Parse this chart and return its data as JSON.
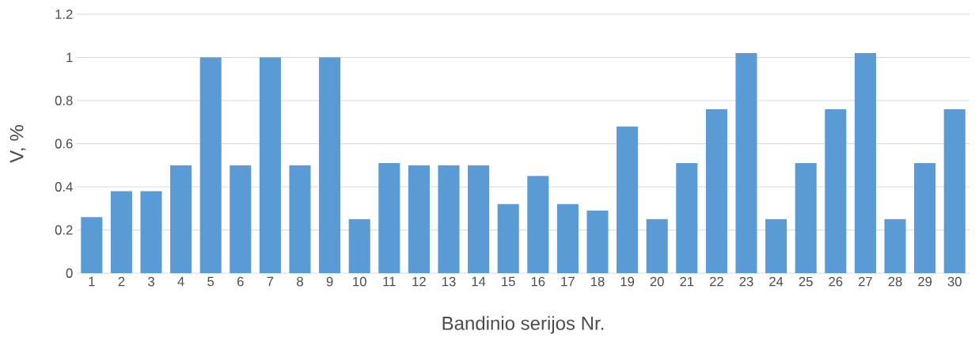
{
  "chart_data": {
    "type": "bar",
    "xlabel": "Bandinio serijos Nr.",
    "ylabel": "V, %",
    "categories": [
      "1",
      "2",
      "3",
      "4",
      "5",
      "6",
      "7",
      "8",
      "9",
      "10",
      "11",
      "12",
      "13",
      "14",
      "15",
      "16",
      "17",
      "18",
      "19",
      "20",
      "21",
      "22",
      "23",
      "24",
      "25",
      "26",
      "27",
      "28",
      "29",
      "30"
    ],
    "values": [
      0.26,
      0.38,
      0.38,
      0.5,
      1.0,
      0.5,
      1.0,
      0.5,
      1.0,
      0.25,
      0.51,
      0.5,
      0.5,
      0.5,
      0.32,
      0.45,
      0.32,
      0.29,
      0.68,
      0.25,
      0.51,
      0.76,
      1.02,
      0.25,
      0.51,
      0.76,
      1.02,
      0.25,
      0.51,
      0.76
    ],
    "color": "#5b9bd5",
    "ylim": [
      0,
      1.2
    ],
    "yticks": [
      0,
      0.2,
      0.4,
      0.6,
      0.8,
      1,
      1.2
    ],
    "grid": "y"
  }
}
